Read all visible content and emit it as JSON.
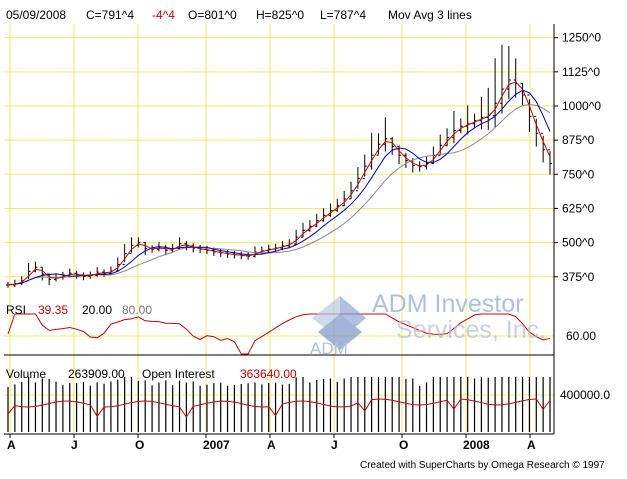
{
  "header": {
    "date": "05/09/2008",
    "close": "C=791^4",
    "change": "-4^4",
    "open": "O=801^0",
    "high": "H=825^0",
    "low": "L=787^4",
    "study": "Mov Avg 3 lines"
  },
  "rsi_panel": {
    "label": "RSI",
    "value": "39.35",
    "lower": "20.00",
    "upper": "80.00",
    "axis_tick": "60.00"
  },
  "volume_panel": {
    "label": "Volume",
    "value": "263909.00",
    "oi_label": "Open Interest",
    "oi_value": "363640.00",
    "axis_tick": "400000.0"
  },
  "watermark": {
    "line1": "ADM Investor",
    "line2": "Services, Inc.",
    "logo_text": "ADM"
  },
  "footer": "Created with SuperCharts by Omega Research © 1997",
  "colors": {
    "grid": "#f2ee5a",
    "price": "#000000",
    "ma_red": "#d40000",
    "ma_blue": "#0000cc",
    "ma_gray": "#8a8a8a",
    "change_red": "#d40000",
    "watermark": "#9ab0d8"
  },
  "chart_data": {
    "type": "line",
    "title": "",
    "x_tick_labels": [
      "A",
      "J",
      "O",
      "2007",
      "A",
      "J",
      "O",
      "2008",
      "A"
    ],
    "y_tick_labels": [
      "1250^0",
      "1125^0",
      "1000^0",
      "875^0",
      "750^0",
      "625^0",
      "500^0",
      "375^0"
    ],
    "ylim": [
      290,
      1300
    ],
    "y_scale": "linear",
    "grid": true,
    "series": [
      {
        "type": "weekly-bars",
        "values": [
          345,
          350,
          360,
          395,
          410,
          385,
          365,
          372,
          378,
          388,
          382,
          376,
          380,
          392,
          388,
          396,
          420,
          460,
          490,
          500,
          478,
          476,
          484,
          472,
          478,
          496,
          488,
          480,
          476,
          472,
          466,
          462,
          458,
          455,
          452,
          450,
          465,
          470,
          476,
          480,
          488,
          495,
          520,
          545,
          560,
          580,
          600,
          618,
          635,
          660,
          690,
          735,
          780,
          820,
          860,
          880,
          852,
          820,
          800,
          782,
          778,
          790,
          818,
          856,
          884,
          910,
          926,
          935,
          946,
          958,
          965,
          1010,
          1062,
          1095,
          1082,
          1040,
          962,
          900,
          840,
          790
        ]
      }
    ],
    "rsi": {
      "last": 39.35,
      "lower": 20,
      "upper": 80,
      "tick": 60
    },
    "volume": {
      "last": 263909,
      "open_interest": 363640,
      "tick": 400000
    }
  }
}
